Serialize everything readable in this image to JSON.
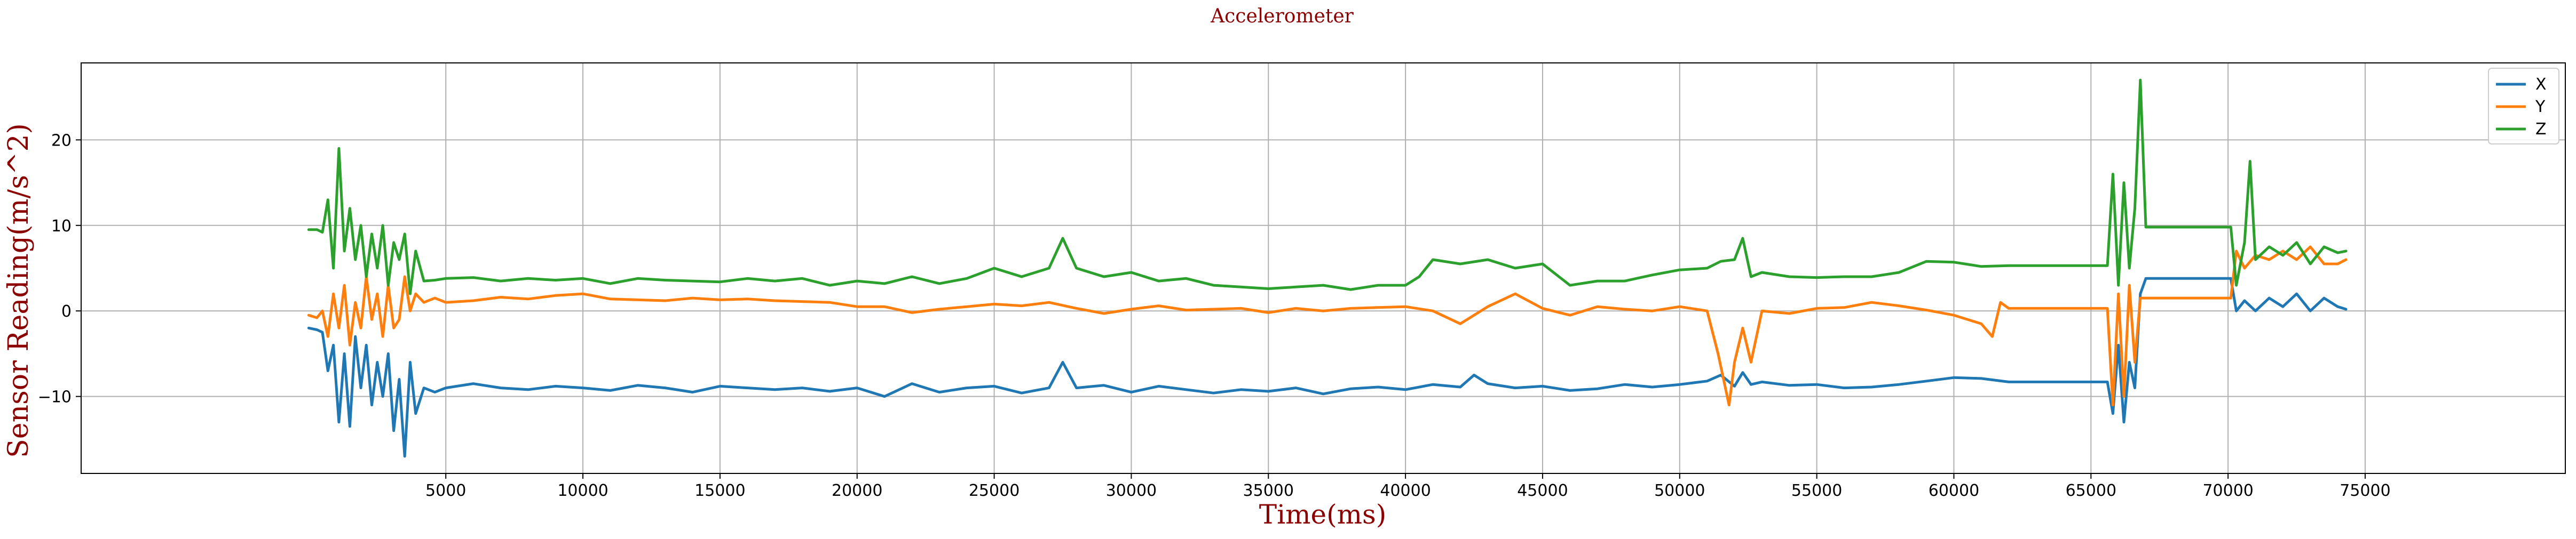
{
  "chart_data": {
    "type": "line",
    "title": "Accelerometer",
    "xlabel": "Time(ms)",
    "ylabel": "Sensor Reading(m/s^2)",
    "xlim": [
      -8300,
      82300
    ],
    "ylim": [
      -19,
      29
    ],
    "xticks": [
      5000,
      10000,
      15000,
      20000,
      25000,
      30000,
      35000,
      40000,
      45000,
      50000,
      55000,
      60000,
      65000,
      70000,
      75000
    ],
    "yticks": [
      -10,
      0,
      10,
      20
    ],
    "grid": true,
    "legend_position": "top-right",
    "series": [
      {
        "name": "X",
        "color": "#1f77b4",
        "x": [
          0,
          300,
          500,
          700,
          900,
          1100,
          1300,
          1500,
          1700,
          1900,
          2100,
          2300,
          2500,
          2700,
          2900,
          3100,
          3300,
          3500,
          3700,
          3900,
          4200,
          4600,
          5000,
          6000,
          7000,
          8000,
          9000,
          10000,
          11000,
          12000,
          13000,
          14000,
          15000,
          16000,
          17000,
          18000,
          19000,
          20000,
          21000,
          22000,
          23000,
          24000,
          25000,
          26000,
          27000,
          27500,
          28000,
          29000,
          30000,
          31000,
          32000,
          33000,
          34000,
          35000,
          36000,
          37000,
          38000,
          39000,
          40000,
          41000,
          42000,
          42500,
          43000,
          44000,
          45000,
          46000,
          47000,
          48000,
          49000,
          50000,
          51000,
          51500,
          52000,
          52300,
          52600,
          53000,
          54000,
          55000,
          56000,
          57000,
          58000,
          59000,
          60000,
          61000,
          62000,
          63000,
          64000,
          65000,
          65600,
          65800,
          66000,
          66200,
          66400,
          66600,
          66800,
          67000,
          68000,
          69000,
          70100,
          70300,
          70600,
          71000,
          71500,
          72000,
          72500,
          73000,
          73500,
          74000,
          74300
        ],
        "y": [
          -2,
          -2.2,
          -2.5,
          -7,
          -4,
          -13,
          -5,
          -13.5,
          -3,
          -9,
          -4,
          -11,
          -6,
          -10,
          -5,
          -14,
          -8,
          -17,
          -6,
          -12,
          -9,
          -9.5,
          -9,
          -8.5,
          -9,
          -9.2,
          -8.8,
          -9,
          -9.3,
          -8.7,
          -9,
          -9.5,
          -8.8,
          -9,
          -9.2,
          -9,
          -9.4,
          -9,
          -10,
          -8.5,
          -9.5,
          -9,
          -8.8,
          -9.6,
          -9,
          -6,
          -9,
          -8.7,
          -9.5,
          -8.8,
          -9.2,
          -9.6,
          -9.2,
          -9.4,
          -9,
          -9.7,
          -9.1,
          -8.9,
          -9.2,
          -8.6,
          -8.9,
          -7.5,
          -8.5,
          -9,
          -8.8,
          -9.3,
          -9.1,
          -8.6,
          -8.9,
          -8.6,
          -8.2,
          -7.5,
          -8.8,
          -7.2,
          -8.6,
          -8.3,
          -8.7,
          -8.6,
          -9,
          -8.9,
          -8.6,
          -8.2,
          -7.8,
          -7.9,
          -8.3,
          -8.3,
          -8.3,
          -8.3,
          -8.3,
          -12,
          -4,
          -13,
          -6,
          -9,
          2,
          3.8,
          3.8,
          3.8,
          3.8,
          0,
          1.2,
          0,
          1.5,
          0.5,
          2,
          0,
          1.5,
          0.5,
          0.2
        ]
      },
      {
        "name": "Y",
        "color": "#ff7f0e",
        "x": [
          0,
          300,
          500,
          700,
          900,
          1100,
          1300,
          1500,
          1700,
          1900,
          2100,
          2300,
          2500,
          2700,
          2900,
          3100,
          3300,
          3500,
          3700,
          3900,
          4200,
          4600,
          5000,
          6000,
          7000,
          8000,
          9000,
          10000,
          11000,
          12000,
          13000,
          14000,
          15000,
          16000,
          17000,
          18000,
          19000,
          20000,
          21000,
          22000,
          23000,
          24000,
          25000,
          26000,
          27000,
          28000,
          29000,
          30000,
          31000,
          32000,
          33000,
          34000,
          35000,
          36000,
          37000,
          38000,
          39000,
          40000,
          41000,
          42000,
          43000,
          44000,
          45000,
          46000,
          47000,
          48000,
          49000,
          50000,
          51000,
          51400,
          51800,
          52000,
          52300,
          52600,
          53000,
          54000,
          55000,
          56000,
          57000,
          58000,
          59000,
          60000,
          61000,
          61400,
          61700,
          62000,
          63000,
          64000,
          65000,
          65600,
          65800,
          66000,
          66200,
          66400,
          66600,
          66800,
          67000,
          68000,
          69000,
          70100,
          70300,
          70600,
          71000,
          71500,
          72000,
          72500,
          73000,
          73500,
          74000,
          74300
        ],
        "y": [
          -0.5,
          -0.8,
          0,
          -3,
          2,
          -2,
          3,
          -4,
          1,
          -2,
          4,
          -1,
          2,
          -3,
          3,
          -2,
          -1,
          4,
          0,
          2,
          1,
          1.5,
          1,
          1.2,
          1.6,
          1.4,
          1.8,
          2,
          1.4,
          1.3,
          1.2,
          1.5,
          1.3,
          1.4,
          1.2,
          1.1,
          1,
          0.5,
          0.5,
          -0.2,
          0.2,
          0.5,
          0.8,
          0.6,
          1,
          0.3,
          -0.3,
          0.2,
          0.6,
          0.1,
          0.2,
          0.3,
          -0.2,
          0.3,
          0,
          0.3,
          0.4,
          0.5,
          0,
          -1.5,
          0.5,
          2,
          0.3,
          -0.5,
          0.5,
          0.2,
          0,
          0.5,
          0,
          -5,
          -11,
          -6,
          -2,
          -6,
          0,
          -0.3,
          0.3,
          0.4,
          1,
          0.6,
          0.1,
          -0.5,
          -1.5,
          -3,
          1,
          0.3,
          0.3,
          0.3,
          0.3,
          0.3,
          -11,
          2,
          -10,
          3,
          -6,
          1.5,
          1.5,
          1.5,
          1.5,
          1.5,
          7,
          5,
          6.5,
          6,
          7,
          6,
          7.5,
          5.5,
          5.5,
          6
        ]
      },
      {
        "name": "Z",
        "color": "#2ca02c",
        "x": [
          0,
          300,
          500,
          700,
          900,
          1100,
          1300,
          1500,
          1700,
          1900,
          2100,
          2300,
          2500,
          2700,
          2900,
          3100,
          3300,
          3500,
          3700,
          3900,
          4200,
          4600,
          5000,
          6000,
          7000,
          8000,
          9000,
          10000,
          11000,
          12000,
          13000,
          14000,
          15000,
          16000,
          17000,
          18000,
          19000,
          20000,
          21000,
          22000,
          23000,
          24000,
          25000,
          26000,
          27000,
          27500,
          28000,
          29000,
          30000,
          31000,
          32000,
          33000,
          34000,
          35000,
          36000,
          37000,
          38000,
          39000,
          40000,
          40500,
          41000,
          42000,
          43000,
          44000,
          45000,
          46000,
          47000,
          48000,
          49000,
          50000,
          51000,
          51500,
          52000,
          52300,
          52600,
          53000,
          54000,
          55000,
          56000,
          57000,
          58000,
          59000,
          60000,
          61000,
          62000,
          63000,
          64000,
          65000,
          65600,
          65800,
          66000,
          66200,
          66400,
          66600,
          66800,
          67000,
          68000,
          69000,
          70100,
          70300,
          70600,
          70800,
          71000,
          71500,
          72000,
          72500,
          73000,
          73500,
          74000,
          74300
        ],
        "y": [
          9.5,
          9.5,
          9.2,
          13,
          5,
          19,
          7,
          12,
          6,
          10,
          4,
          9,
          5,
          10,
          3,
          8,
          6,
          9,
          2,
          7,
          3.5,
          3.6,
          3.8,
          3.9,
          3.5,
          3.8,
          3.6,
          3.8,
          3.2,
          3.8,
          3.6,
          3.5,
          3.4,
          3.8,
          3.5,
          3.8,
          3,
          3.5,
          3.2,
          4,
          3.2,
          3.8,
          5,
          4,
          5,
          8.5,
          5,
          4,
          4.5,
          3.5,
          3.8,
          3,
          2.8,
          2.6,
          2.8,
          3,
          2.5,
          3,
          3,
          4,
          6,
          5.5,
          6,
          5,
          5.5,
          3,
          3.5,
          3.5,
          4.2,
          4.8,
          5,
          5.8,
          6,
          8.5,
          4,
          4.5,
          4,
          3.9,
          4,
          4,
          4.5,
          5.8,
          5.7,
          5.2,
          5.3,
          5.3,
          5.3,
          5.3,
          5.3,
          16,
          3,
          15,
          5,
          12,
          27,
          9.8,
          9.8,
          9.8,
          9.8,
          3,
          8,
          17.5,
          6,
          7.5,
          6.5,
          8,
          5.5,
          7.5,
          6.8,
          7
        ]
      }
    ]
  }
}
